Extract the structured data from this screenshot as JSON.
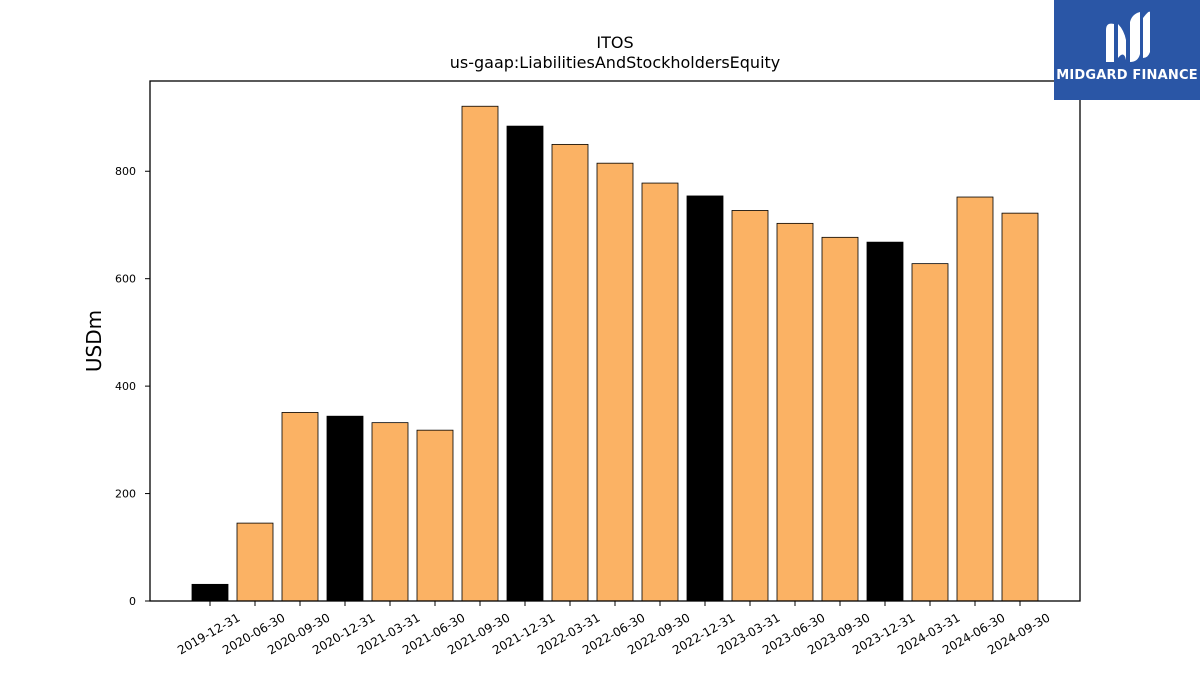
{
  "chart_data": {
    "type": "bar",
    "title": "ITOS",
    "subtitle": "us-gaap:LiabilitiesAndStockholdersEquity",
    "xlabel": "",
    "ylabel": "USDm",
    "categories": [
      "2019-12-31",
      "2020-06-30",
      "2020-09-30",
      "2020-12-31",
      "2021-03-31",
      "2021-06-30",
      "2021-09-30",
      "2021-12-31",
      "2022-03-31",
      "2022-06-30",
      "2022-09-30",
      "2022-12-31",
      "2023-03-31",
      "2023-06-30",
      "2023-09-30",
      "2023-12-31",
      "2024-03-31",
      "2024-06-30",
      "2024-09-30"
    ],
    "values": [
      31,
      145,
      351,
      344,
      332,
      318,
      921,
      884,
      850,
      815,
      778,
      754,
      727,
      703,
      677,
      668,
      628,
      752,
      722
    ],
    "bar_kind": [
      "annual",
      "quarterly",
      "quarterly",
      "annual",
      "quarterly",
      "quarterly",
      "quarterly",
      "annual",
      "quarterly",
      "quarterly",
      "quarterly",
      "annual",
      "quarterly",
      "quarterly",
      "quarterly",
      "annual",
      "quarterly",
      "quarterly",
      "quarterly"
    ],
    "colors": {
      "annual": "#000000",
      "quarterly": "#fbb264",
      "edge": "#000000"
    },
    "ylim": [
      0,
      968
    ],
    "yticks": [
      0,
      200,
      400,
      600,
      800
    ],
    "grid": false,
    "legend": "none"
  },
  "logo": {
    "name": "MIDGARD FINANCE",
    "background": "#2a56a6",
    "icon": "midgard-m-icon"
  }
}
